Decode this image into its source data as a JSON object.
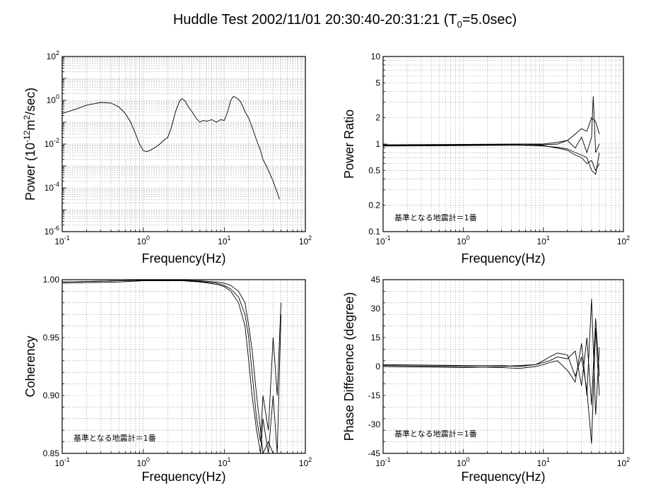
{
  "title": {
    "prefix": "Huddle Test  2002/11/01  20:30:40-20:31:21 (T",
    "subscript": "0",
    "suffix": "=5.0sec)"
  },
  "colors": {
    "line": "#000000",
    "grid": "#9a9a9a",
    "frame": "#000000"
  },
  "chart_data": [
    {
      "type": "line",
      "panel": "top-left",
      "xlabel": "Frequency(Hz)",
      "ylabel": {
        "text": "Power (10",
        "sup1": "-12",
        "mid": "m",
        "sup2": "2",
        "tail": "/sec)"
      },
      "xscale": "log",
      "yscale": "log",
      "xlim": [
        0.1,
        100
      ],
      "ylim": [
        1e-06,
        100
      ],
      "x_ticks": [
        {
          "base": "10",
          "exp": "-1"
        },
        {
          "base": "10",
          "exp": "0"
        },
        {
          "base": "10",
          "exp": "1"
        },
        {
          "base": "10",
          "exp": "2"
        }
      ],
      "y_ticks": [
        {
          "value": 100,
          "base": "10",
          "exp": "2"
        },
        {
          "value": 1,
          "base": "10",
          "exp": "0"
        },
        {
          "value": 0.01,
          "base": "10",
          "exp": "-2"
        },
        {
          "value": 0.0001,
          "base": "10",
          "exp": "-4"
        },
        {
          "value": 1e-06,
          "base": "10",
          "exp": "-6"
        }
      ],
      "grid": true,
      "series": [
        {
          "x": [
            0.1,
            0.15,
            0.2,
            0.3,
            0.4,
            0.5,
            0.6,
            0.7,
            0.8,
            0.9,
            1.0,
            1.1,
            1.2,
            1.4,
            1.6,
            1.8,
            2.0,
            2.2,
            2.5,
            2.8,
            3.0,
            3.3,
            3.6,
            4.0,
            4.5,
            5.0,
            5.5,
            6.0,
            7.0,
            8.0,
            9.0,
            10,
            11,
            12,
            13,
            14,
            15,
            16,
            17,
            18,
            20,
            22,
            25,
            28,
            30,
            33,
            36,
            40,
            45,
            48
          ],
          "y": [
            0.25,
            0.4,
            0.6,
            0.8,
            0.75,
            0.5,
            0.25,
            0.1,
            0.03,
            0.01,
            0.005,
            0.0045,
            0.005,
            0.007,
            0.01,
            0.015,
            0.02,
            0.05,
            0.3,
            0.9,
            1.2,
            0.9,
            0.5,
            0.3,
            0.15,
            0.1,
            0.12,
            0.11,
            0.13,
            0.1,
            0.13,
            0.12,
            0.3,
            1.0,
            1.5,
            1.3,
            1.1,
            0.8,
            0.5,
            0.3,
            0.15,
            0.06,
            0.015,
            0.005,
            0.002,
            0.001,
            0.0005,
            0.0002,
            6e-05,
            3e-05
          ]
        }
      ]
    },
    {
      "type": "line",
      "panel": "top-right",
      "xlabel": "Frequency(Hz)",
      "ylabel": "Power Ratio",
      "xscale": "log",
      "yscale": "log",
      "xlim": [
        0.1,
        100
      ],
      "ylim": [
        0.1,
        10
      ],
      "x_ticks": [
        {
          "base": "10",
          "exp": "-1"
        },
        {
          "base": "10",
          "exp": "0"
        },
        {
          "base": "10",
          "exp": "1"
        },
        {
          "base": "10",
          "exp": "2"
        }
      ],
      "y_ticks": [
        {
          "value": 10,
          "label": "10"
        },
        {
          "value": 5,
          "label": "5"
        },
        {
          "value": 2,
          "label": "2"
        },
        {
          "value": 1,
          "label": "1"
        },
        {
          "value": 0.5,
          "label": "0.5"
        },
        {
          "value": 0.2,
          "label": "0.2"
        },
        {
          "value": 0.1,
          "label": "0.1"
        }
      ],
      "annotation": "基準となる地震計＝1番",
      "grid": true,
      "series": [
        {
          "x": [
            0.1,
            1,
            5,
            10,
            15,
            20,
            25,
            30,
            35,
            40,
            45,
            50
          ],
          "y": [
            0.97,
            0.98,
            1.0,
            1.0,
            1.05,
            1.1,
            1.3,
            1.5,
            1.4,
            2.0,
            1.8,
            1.3
          ]
        },
        {
          "x": [
            0.1,
            1,
            5,
            10,
            15,
            20,
            25,
            30,
            35,
            40,
            45,
            50
          ],
          "y": [
            0.96,
            0.97,
            0.98,
            0.96,
            0.9,
            0.85,
            0.75,
            0.7,
            0.6,
            0.65,
            0.5,
            0.6
          ]
        },
        {
          "x": [
            0.1,
            1,
            5,
            10,
            15,
            20,
            25,
            30,
            35,
            40,
            42,
            45,
            50
          ],
          "y": [
            0.98,
            0.99,
            1.0,
            0.98,
            1.0,
            1.1,
            0.9,
            1.2,
            0.8,
            1.2,
            3.5,
            0.8,
            1.0
          ]
        },
        {
          "x": [
            0.1,
            1,
            5,
            10,
            15,
            20,
            25,
            30,
            35,
            40,
            45,
            50
          ],
          "y": [
            0.95,
            0.96,
            0.97,
            0.95,
            0.92,
            0.88,
            0.8,
            0.75,
            0.7,
            0.5,
            0.45,
            0.8
          ]
        }
      ]
    },
    {
      "type": "line",
      "panel": "bottom-left",
      "xlabel": "Frequency(Hz)",
      "ylabel": "Coherency",
      "xscale": "log",
      "yscale": "linear",
      "xlim": [
        0.1,
        100
      ],
      "ylim": [
        0.85,
        1.0
      ],
      "x_ticks": [
        {
          "base": "10",
          "exp": "-1"
        },
        {
          "base": "10",
          "exp": "0"
        },
        {
          "base": "10",
          "exp": "1"
        },
        {
          "base": "10",
          "exp": "2"
        }
      ],
      "y_ticks": [
        {
          "value": 1.0,
          "label": "1.00"
        },
        {
          "value": 0.95,
          "label": "0.95"
        },
        {
          "value": 0.9,
          "label": "0.90"
        },
        {
          "value": 0.85,
          "label": "0.85"
        }
      ],
      "annotation": "基準となる地震計＝1番",
      "grid": true,
      "series": [
        {
          "x": [
            0.1,
            0.5,
            1,
            3,
            5,
            8,
            10,
            12,
            15,
            18,
            20,
            22,
            25,
            28,
            30,
            35,
            40,
            45,
            50
          ],
          "y": [
            0.998,
            0.999,
            0.9995,
            0.9995,
            0.999,
            0.998,
            0.997,
            0.995,
            0.99,
            0.98,
            0.96,
            0.94,
            0.9,
            0.87,
            0.85,
            0.86,
            0.85,
            0.85,
            0.85
          ]
        },
        {
          "x": [
            0.1,
            0.5,
            1,
            3,
            5,
            8,
            10,
            12,
            15,
            18,
            20,
            22,
            25,
            28,
            30,
            35,
            40,
            45,
            50
          ],
          "y": [
            0.998,
            0.999,
            0.9995,
            0.9995,
            0.9985,
            0.997,
            0.995,
            0.992,
            0.985,
            0.97,
            0.95,
            0.92,
            0.88,
            0.86,
            0.9,
            0.87,
            0.95,
            0.9,
            0.98
          ]
        },
        {
          "x": [
            0.1,
            0.5,
            1,
            3,
            5,
            8,
            10,
            12,
            15,
            18,
            20,
            22,
            25,
            28,
            30,
            35,
            40,
            45,
            50
          ],
          "y": [
            0.997,
            0.998,
            0.999,
            0.999,
            0.998,
            0.996,
            0.994,
            0.99,
            0.98,
            0.96,
            0.93,
            0.9,
            0.87,
            0.85,
            0.88,
            0.85,
            0.9,
            0.85,
            0.97
          ]
        }
      ]
    },
    {
      "type": "line",
      "panel": "bottom-right",
      "xlabel": "Frequency(Hz)",
      "ylabel": "Phase Difference (degree)",
      "xscale": "log",
      "yscale": "linear",
      "xlim": [
        0.1,
        100
      ],
      "ylim": [
        -45,
        45
      ],
      "x_ticks": [
        {
          "base": "10",
          "exp": "-1"
        },
        {
          "base": "10",
          "exp": "0"
        },
        {
          "base": "10",
          "exp": "1"
        },
        {
          "base": "10",
          "exp": "2"
        }
      ],
      "y_ticks": [
        {
          "value": 45,
          "label": "45"
        },
        {
          "value": 30,
          "label": "30"
        },
        {
          "value": 15,
          "label": "15"
        },
        {
          "value": 0,
          "label": "0"
        },
        {
          "value": -15,
          "label": "-15"
        },
        {
          "value": -30,
          "label": "-30"
        },
        {
          "value": -45,
          "label": "-45"
        }
      ],
      "annotation": "基準となる地震計＝1番",
      "grid": true,
      "series": [
        {
          "x": [
            0.1,
            1,
            3,
            5,
            8,
            10,
            12,
            15,
            20,
            25,
            30,
            35,
            40,
            45,
            50
          ],
          "y": [
            1,
            0.5,
            0.5,
            0,
            1,
            2,
            3,
            5,
            4,
            8,
            -10,
            15,
            -20,
            25,
            -5
          ]
        },
        {
          "x": [
            0.1,
            1,
            3,
            5,
            8,
            10,
            12,
            15,
            20,
            25,
            30,
            35,
            40,
            45,
            50
          ],
          "y": [
            0.5,
            0,
            -0.5,
            -1,
            0,
            1,
            2,
            3,
            -2,
            -8,
            12,
            -15,
            35,
            -25,
            10
          ]
        },
        {
          "x": [
            0.1,
            1,
            3,
            5,
            8,
            10,
            12,
            15,
            20,
            25,
            30,
            35,
            40,
            45,
            50
          ],
          "y": [
            0,
            -0.5,
            0,
            0.5,
            1,
            3,
            5,
            7,
            6,
            -5,
            5,
            -12,
            -40,
            20,
            -15
          ]
        }
      ]
    }
  ]
}
